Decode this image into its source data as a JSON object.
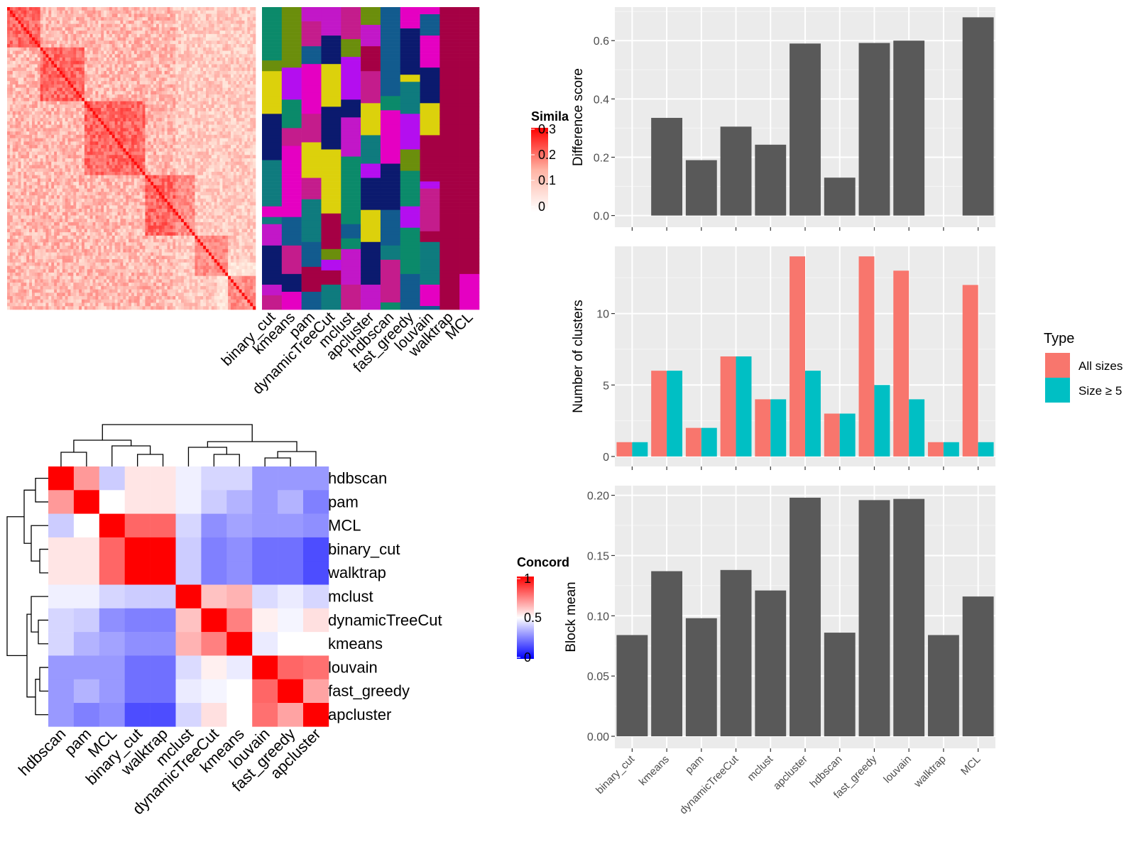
{
  "heatmap_legend": {
    "title": "Simila",
    "ticks": [
      "0.3",
      "0.2",
      "0.1",
      "0"
    ]
  },
  "concord_legend": {
    "title": "Concord",
    "ticks": [
      "1",
      "0.5",
      "0"
    ]
  },
  "method_labels": [
    "binary_cut",
    "kmeans",
    "pam",
    "dynamicTreeCut",
    "mclust",
    "apcluster",
    "hdbscan",
    "fast_greedy",
    "louvain",
    "walktrap",
    "MCL"
  ],
  "concordance_order": [
    "hdbscan",
    "pam",
    "MCL",
    "binary_cut",
    "walktrap",
    "mclust",
    "dynamicTreeCut",
    "kmeans",
    "louvain",
    "fast_greedy",
    "apcluster"
  ],
  "legend": {
    "title": "Type",
    "items": [
      "All sizes",
      "Size ≥ 5"
    ]
  },
  "colors": {
    "all_sizes": "#f8766d",
    "size5": "#00bfc4",
    "bar": "#595959",
    "panel": "#ebebeb"
  },
  "chart_data": [
    {
      "type": "heatmap",
      "title": "",
      "legend_title": "Simila",
      "value_range": [
        0,
        0.3
      ],
      "note": "Similarity matrix of ~100 terms with diagonal block structure"
    },
    {
      "type": "heatmap",
      "title": "",
      "columns": [
        "binary_cut",
        "kmeans",
        "pam",
        "dynamicTreeCut",
        "mclust",
        "apcluster",
        "hdbscan",
        "fast_greedy",
        "louvain",
        "walktrap",
        "MCL"
      ]
    },
    {
      "type": "heatmap",
      "title": "",
      "legend_title": "Concord",
      "value_range": [
        0,
        1
      ],
      "rows": [
        "hdbscan",
        "pam",
        "MCL",
        "binary_cut",
        "walktrap",
        "mclust",
        "dynamicTreeCut",
        "kmeans",
        "louvain",
        "fast_greedy",
        "apcluster"
      ],
      "columns": [
        "hdbscan",
        "pam",
        "MCL",
        "binary_cut",
        "walktrap",
        "mclust",
        "dynamicTreeCut",
        "kmeans",
        "louvain",
        "fast_greedy",
        "apcluster"
      ],
      "values": [
        [
          1.0,
          0.7,
          0.4,
          0.55,
          0.55,
          0.47,
          0.42,
          0.42,
          0.3,
          0.3,
          0.3
        ],
        [
          0.7,
          1.0,
          0.5,
          0.55,
          0.55,
          0.47,
          0.4,
          0.35,
          0.3,
          0.35,
          0.25
        ],
        [
          0.4,
          0.5,
          1.0,
          0.8,
          0.8,
          0.42,
          0.28,
          0.32,
          0.3,
          0.3,
          0.28
        ],
        [
          0.55,
          0.55,
          0.8,
          1.0,
          1.0,
          0.4,
          0.25,
          0.28,
          0.22,
          0.22,
          0.15
        ],
        [
          0.55,
          0.55,
          0.8,
          1.0,
          1.0,
          0.4,
          0.25,
          0.28,
          0.22,
          0.22,
          0.15
        ],
        [
          0.47,
          0.47,
          0.42,
          0.4,
          0.4,
          1.0,
          0.62,
          0.65,
          0.43,
          0.46,
          0.42
        ],
        [
          0.42,
          0.4,
          0.28,
          0.25,
          0.25,
          0.62,
          1.0,
          0.75,
          0.53,
          0.48,
          0.56
        ],
        [
          0.42,
          0.35,
          0.32,
          0.28,
          0.28,
          0.65,
          0.75,
          1.0,
          0.46,
          0.5,
          0.5
        ],
        [
          0.3,
          0.3,
          0.3,
          0.22,
          0.22,
          0.43,
          0.53,
          0.46,
          1.0,
          0.8,
          0.78
        ],
        [
          0.3,
          0.35,
          0.3,
          0.22,
          0.22,
          0.46,
          0.48,
          0.5,
          0.8,
          1.0,
          0.68
        ],
        [
          0.3,
          0.25,
          0.28,
          0.15,
          0.15,
          0.42,
          0.56,
          0.5,
          0.78,
          0.68,
          1.0
        ]
      ]
    },
    {
      "type": "bar",
      "title": "",
      "xlabel": "",
      "ylabel": "Difference score",
      "categories": [
        "binary_cut",
        "kmeans",
        "pam",
        "dynamicTreeCut",
        "mclust",
        "apcluster",
        "hdbscan",
        "fast_greedy",
        "louvain",
        "walktrap",
        "MCL"
      ],
      "values": [
        0,
        0.335,
        0.19,
        0.305,
        0.243,
        0.59,
        0.13,
        0.592,
        0.6,
        0,
        0.68
      ],
      "ylim": [
        -0.04,
        0.715
      ],
      "yticks": [
        "0.0",
        "0.2",
        "0.4",
        "0.6"
      ],
      "grid": true
    },
    {
      "type": "bar",
      "title": "",
      "xlabel": "",
      "ylabel": "Number of clusters",
      "categories": [
        "binary_cut",
        "kmeans",
        "pam",
        "dynamicTreeCut",
        "mclust",
        "apcluster",
        "hdbscan",
        "fast_greedy",
        "louvain",
        "walktrap",
        "MCL"
      ],
      "series": [
        {
          "name": "All sizes",
          "values": [
            1,
            6,
            2,
            7,
            4,
            14,
            3,
            14,
            13,
            1,
            12
          ]
        },
        {
          "name": "Size ≥ 5",
          "values": [
            1,
            6,
            2,
            7,
            4,
            6,
            3,
            5,
            4,
            1,
            1
          ]
        }
      ],
      "ylim": [
        -0.7,
        14.7
      ],
      "yticks": [
        "0",
        "5",
        "10"
      ],
      "legend_title": "Type",
      "legend_position": "right",
      "grid": true
    },
    {
      "type": "bar",
      "title": "",
      "xlabel": "",
      "ylabel": "Block mean",
      "categories": [
        "binary_cut",
        "kmeans",
        "pam",
        "dynamicTreeCut",
        "mclust",
        "apcluster",
        "hdbscan",
        "fast_greedy",
        "louvain",
        "walktrap",
        "MCL"
      ],
      "values": [
        0.084,
        0.137,
        0.098,
        0.138,
        0.121,
        0.198,
        0.086,
        0.196,
        0.197,
        0.084,
        0.116
      ],
      "ylim": [
        -0.01,
        0.208
      ],
      "yticks": [
        "0.00",
        "0.05",
        "0.10",
        "0.15",
        "0.20"
      ],
      "grid": true
    }
  ]
}
